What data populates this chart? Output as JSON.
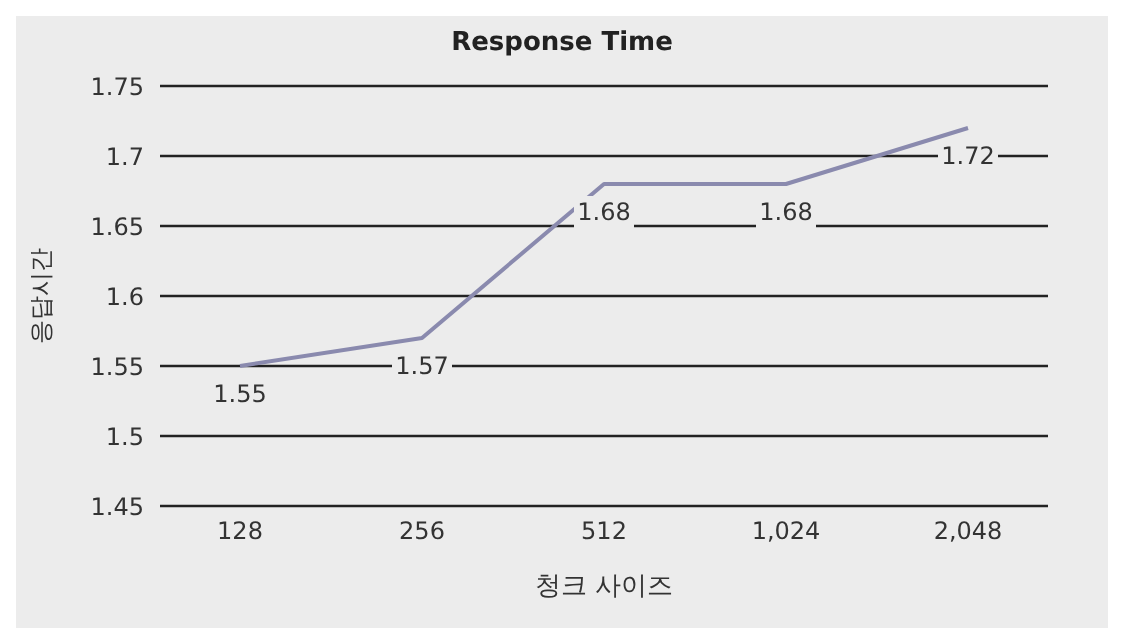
{
  "chart_data": {
    "type": "line",
    "title": "Response Time",
    "xlabel": "청크 사이즈",
    "ylabel": "응답시간",
    "categories": [
      "128",
      "256",
      "512",
      "1,024",
      "2,048"
    ],
    "series": [
      {
        "color": "#8a8aae",
        "values": [
          1.55,
          1.57,
          1.68,
          1.68,
          1.72
        ]
      }
    ],
    "ylim": [
      1.45,
      1.75
    ],
    "yticks": [
      1.45,
      1.5,
      1.55,
      1.6,
      1.65,
      1.7,
      1.75
    ],
    "grid": "y",
    "data_labels": true,
    "marker": "none",
    "line_style": "solid"
  }
}
